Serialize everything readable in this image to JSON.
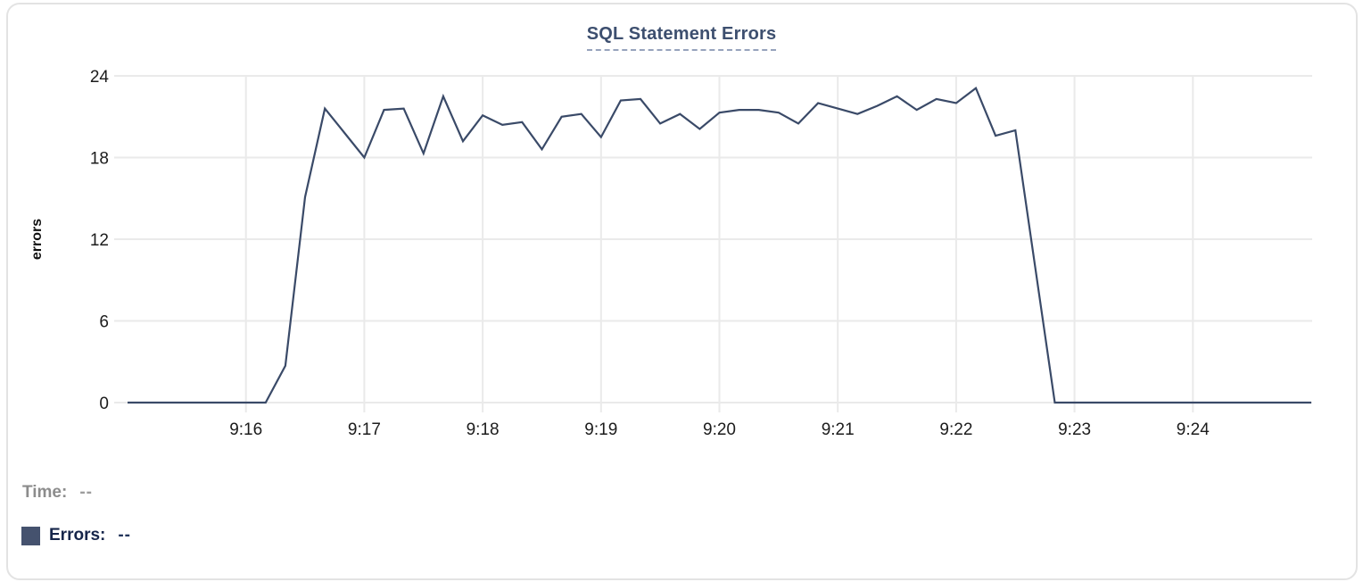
{
  "chart_data": {
    "type": "line",
    "title": "SQL Statement Errors",
    "xlabel": "",
    "ylabel": "errors",
    "x_start": "9:15:00",
    "x_end": "9:25:00",
    "sample_interval_seconds": 10,
    "x_tick_labels": [
      "9:16",
      "9:17",
      "9:18",
      "9:19",
      "9:20",
      "9:21",
      "9:22",
      "9:23",
      "9:24"
    ],
    "y_tick_labels": [
      "24",
      "18",
      "12",
      "6",
      "0"
    ],
    "ylim": [
      0,
      24
    ],
    "grid": true,
    "legend_position": "bottom-left",
    "series": [
      {
        "name": "Errors",
        "color": "#3A4A68",
        "values": [
          0,
          0,
          0,
          0,
          0,
          0,
          0,
          0,
          2.7,
          15.1,
          21.6,
          19.8,
          18,
          21.5,
          21.6,
          18.3,
          22.5,
          19.2,
          21.1,
          20.4,
          20.6,
          18.6,
          21,
          21.2,
          19.5,
          22.2,
          22.3,
          20.5,
          21.2,
          20.1,
          21.3,
          21.5,
          21.5,
          21.3,
          20.5,
          22,
          21.6,
          21.2,
          21.8,
          22.5,
          21.5,
          22.3,
          22,
          23.1,
          19.6,
          20,
          10,
          0,
          0,
          0,
          0,
          0,
          0,
          0,
          0,
          0,
          0,
          0,
          0,
          0,
          0
        ]
      }
    ]
  },
  "readout": {
    "time_label": "Time:",
    "time_value": "--",
    "errors_label": "Errors:",
    "errors_value": "--",
    "swatch_color": "#45526E"
  },
  "colors": {
    "title_text": "#3D4F6F",
    "title_underline": "#96A3BC",
    "line": "#3A4A68",
    "gridline": "#EAEAEA",
    "axis_tick_text": "#1C1C1C",
    "y_axis_title_text": "#111111",
    "time_label_text": "#8C8C8C",
    "errors_label_text": "#16254A",
    "card_border": "#E3E3E3",
    "card_background": "#FFFFFF"
  }
}
